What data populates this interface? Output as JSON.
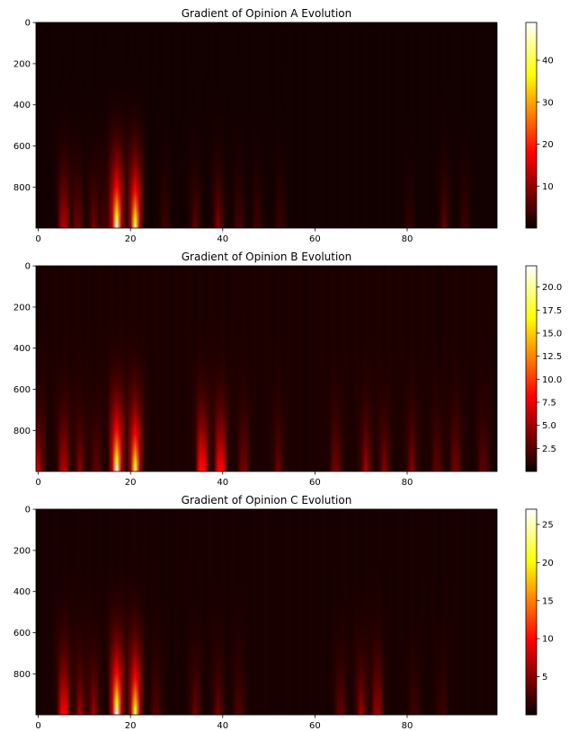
{
  "chart_data": [
    {
      "type": "heatmap",
      "title": "Gradient of Opinion A Evolution",
      "colormap": "hot",
      "x_ticks": [
        0,
        20,
        40,
        60,
        80
      ],
      "y_ticks": [
        0,
        200,
        400,
        600,
        800
      ],
      "xlim": [
        -0.5,
        99.5
      ],
      "ylim": [
        999.5,
        -0.5
      ],
      "colorbar": {
        "min": 0,
        "max": 49,
        "ticks": [
          10,
          20,
          30,
          40
        ]
      },
      "hotspots": [
        {
          "x": 17.5,
          "peak": 49
        },
        {
          "x": 21.5,
          "peak": 44
        },
        {
          "x": 6,
          "peak": 16
        },
        {
          "x": 9,
          "peak": 9
        },
        {
          "x": 12.5,
          "peak": 8
        },
        {
          "x": 15,
          "peak": 5
        },
        {
          "x": 28,
          "peak": 4
        },
        {
          "x": 34.5,
          "peak": 6
        },
        {
          "x": 39.5,
          "peak": 9
        },
        {
          "x": 44,
          "peak": 5
        },
        {
          "x": 48,
          "peak": 4
        },
        {
          "x": 53,
          "peak": 4
        },
        {
          "x": 81,
          "peak": 3
        },
        {
          "x": 88.5,
          "peak": 6
        },
        {
          "x": 93,
          "peak": 4
        }
      ]
    },
    {
      "type": "heatmap",
      "title": "Gradient of Opinion B Evolution",
      "colormap": "hot",
      "x_ticks": [
        0,
        20,
        40,
        60,
        80
      ],
      "y_ticks": [
        0,
        200,
        400,
        600,
        800
      ],
      "xlim": [
        -0.5,
        99.5
      ],
      "ylim": [
        999.5,
        -0.5
      ],
      "colorbar": {
        "min": 0,
        "max": 22.3,
        "ticks": [
          2.5,
          5.0,
          7.5,
          10.0,
          12.5,
          15.0,
          17.5,
          20.0
        ]
      },
      "hotspots": [
        {
          "x": 17.5,
          "peak": 22
        },
        {
          "x": 21.5,
          "peak": 19
        },
        {
          "x": 0.5,
          "peak": 6
        },
        {
          "x": 6,
          "peak": 7
        },
        {
          "x": 9.5,
          "peak": 4
        },
        {
          "x": 13,
          "peak": 3
        },
        {
          "x": 36,
          "peak": 12
        },
        {
          "x": 40,
          "peak": 11
        },
        {
          "x": 45,
          "peak": 4
        },
        {
          "x": 52.5,
          "peak": 3
        },
        {
          "x": 65,
          "peak": 4
        },
        {
          "x": 71.5,
          "peak": 5
        },
        {
          "x": 75.5,
          "peak": 4
        },
        {
          "x": 81.5,
          "peak": 4
        },
        {
          "x": 87,
          "peak": 3
        },
        {
          "x": 91,
          "peak": 4
        },
        {
          "x": 97,
          "peak": 3
        }
      ]
    },
    {
      "type": "heatmap",
      "title": "Gradient of Opinion C Evolution",
      "colormap": "hot",
      "x_ticks": [
        0,
        20,
        40,
        60,
        80
      ],
      "y_ticks": [
        0,
        200,
        400,
        600,
        800
      ],
      "xlim": [
        -0.5,
        99.5
      ],
      "ylim": [
        999.5,
        -0.5
      ],
      "colorbar": {
        "min": 0,
        "max": 27,
        "ticks": [
          5,
          10,
          15,
          20,
          25
        ]
      },
      "hotspots": [
        {
          "x": 17.5,
          "peak": 27
        },
        {
          "x": 21.5,
          "peak": 23
        },
        {
          "x": 6,
          "peak": 13
        },
        {
          "x": 9.5,
          "peak": 6
        },
        {
          "x": 12.5,
          "peak": 6
        },
        {
          "x": 26,
          "peak": 3
        },
        {
          "x": 34.5,
          "peak": 4
        },
        {
          "x": 39.5,
          "peak": 4
        },
        {
          "x": 44,
          "peak": 3
        },
        {
          "x": 66,
          "peak": 4
        },
        {
          "x": 70.5,
          "peak": 6
        },
        {
          "x": 74,
          "peak": 7
        },
        {
          "x": 82,
          "peak": 2
        },
        {
          "x": 88,
          "peak": 2
        }
      ]
    }
  ]
}
